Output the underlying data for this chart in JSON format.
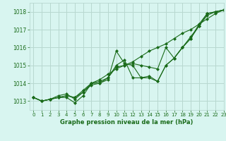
{
  "title": "Graphe pression niveau de la mer (hPa)",
  "bg_color": "#d8f5f0",
  "grid_color": "#b8d8d0",
  "line_color": "#1a6b1a",
  "marker_color": "#1a6b1a",
  "xlim": [
    -0.5,
    23
  ],
  "ylim": [
    1012.5,
    1018.5
  ],
  "yticks": [
    1013,
    1014,
    1015,
    1016,
    1017,
    1018
  ],
  "xticks": [
    0,
    1,
    2,
    3,
    4,
    5,
    6,
    7,
    8,
    9,
    10,
    11,
    12,
    13,
    14,
    15,
    16,
    17,
    18,
    19,
    20,
    21,
    22,
    23
  ],
  "series": [
    [
      1013.2,
      1013.0,
      1013.1,
      1013.2,
      1013.2,
      1012.9,
      1013.3,
      1014.0,
      1014.0,
      1014.2,
      1015.8,
      1015.1,
      1015.0,
      1014.3,
      1014.4,
      1014.1,
      1015.0,
      1015.4,
      1016.0,
      1016.5,
      1017.2,
      1017.8,
      1018.0,
      1018.1
    ],
    [
      1013.2,
      1013.0,
      1013.1,
      1013.2,
      1013.3,
      1013.2,
      1013.5,
      1014.0,
      1014.2,
      1014.5,
      1014.8,
      1015.0,
      1015.2,
      1015.5,
      1015.8,
      1016.0,
      1016.2,
      1016.5,
      1016.8,
      1017.0,
      1017.3,
      1017.6,
      1017.9,
      1018.1
    ],
    [
      1013.2,
      1013.0,
      1013.1,
      1013.2,
      1013.3,
      1013.2,
      1013.6,
      1014.0,
      1014.1,
      1014.3,
      1014.9,
      1015.0,
      1015.1,
      1015.0,
      1014.9,
      1014.8,
      1016.0,
      1015.4,
      1016.0,
      1016.5,
      1017.3,
      1017.9,
      1018.0,
      1018.1
    ],
    [
      1013.2,
      1013.0,
      1013.1,
      1013.3,
      1013.4,
      1013.1,
      1013.5,
      1013.9,
      1014.0,
      1014.3,
      1015.0,
      1015.3,
      1014.3,
      1014.3,
      1014.3,
      1014.1,
      1015.0,
      1015.4,
      1016.0,
      1016.6,
      1017.2,
      1017.9,
      1018.0,
      1018.1
    ]
  ]
}
